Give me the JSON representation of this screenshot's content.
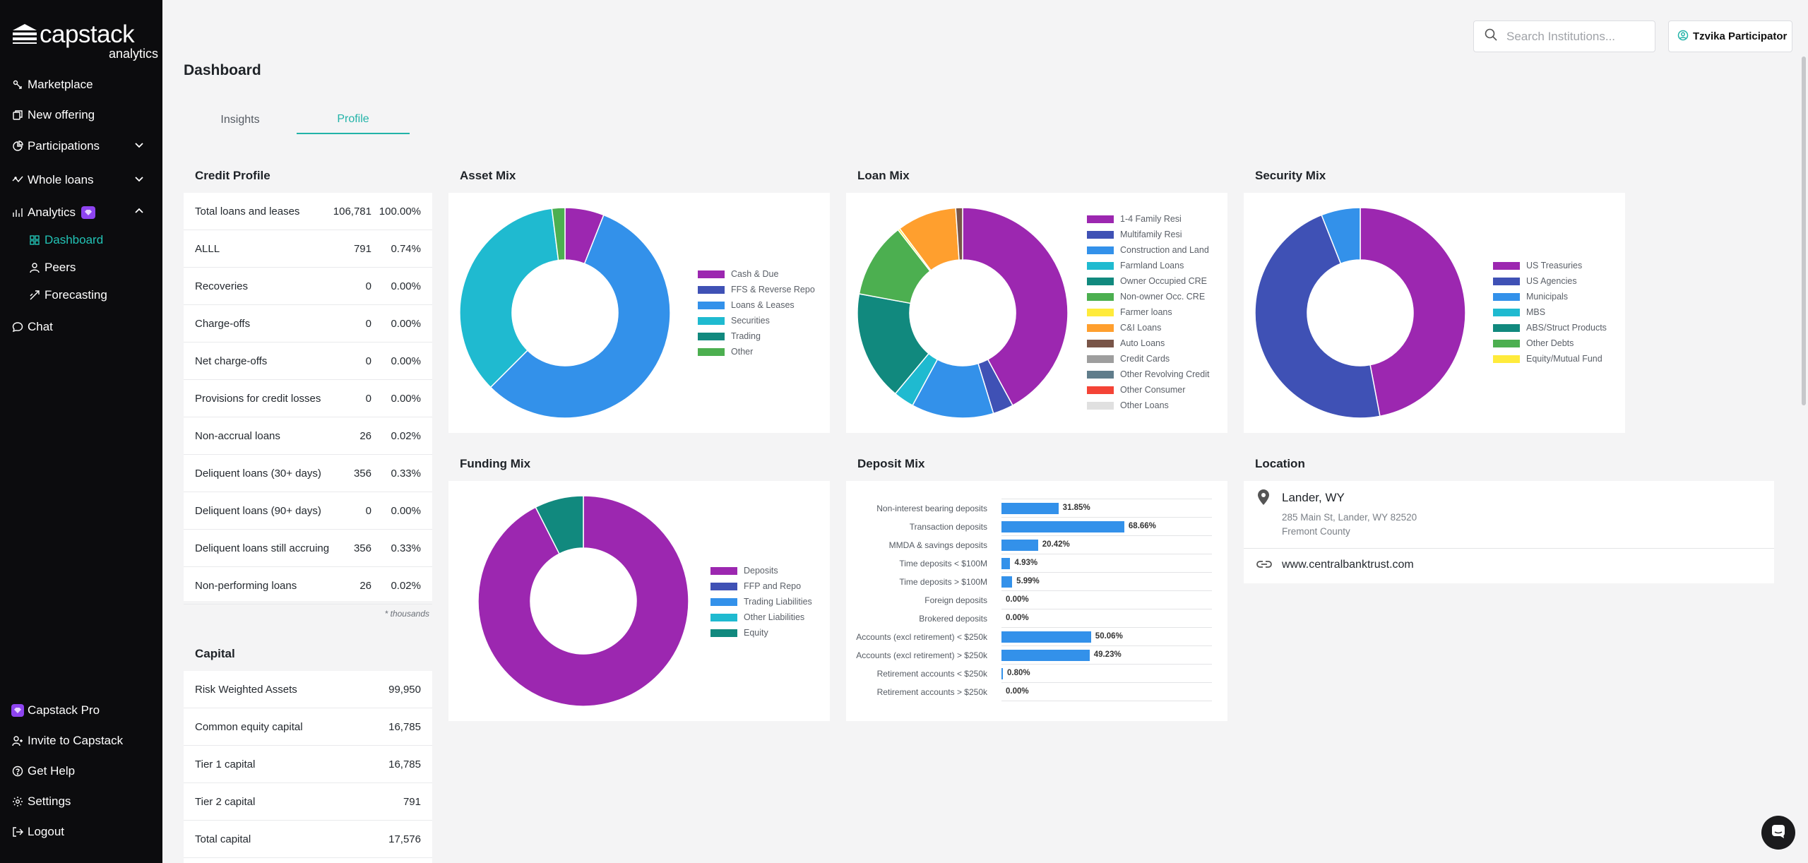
{
  "brand": {
    "name": "capstack",
    "sub": "analytics"
  },
  "sidebar": {
    "items": [
      {
        "label": "Marketplace",
        "icon": "marketplace-icon"
      },
      {
        "label": "New offering",
        "icon": "new-offering-icon"
      },
      {
        "label": "Participations",
        "icon": "participations-icon"
      },
      {
        "label": "Whole loans",
        "icon": "whole-loans-icon"
      },
      {
        "label": "Analytics",
        "icon": "analytics-icon"
      },
      {
        "label": "Dashboard",
        "icon": "dashboard-icon"
      },
      {
        "label": "Peers",
        "icon": "peers-icon"
      },
      {
        "label": "Forecasting",
        "icon": "forecasting-icon"
      },
      {
        "label": "Chat",
        "icon": "chat-icon"
      }
    ],
    "bottom": [
      {
        "label": "Capstack Pro",
        "icon": "pro-badge-icon"
      },
      {
        "label": "Invite to Capstack",
        "icon": "invite-icon"
      },
      {
        "label": "Get Help",
        "icon": "help-icon"
      },
      {
        "label": "Settings",
        "icon": "settings-icon"
      },
      {
        "label": "Logout",
        "icon": "logout-icon"
      }
    ]
  },
  "header": {
    "search_placeholder": "Search Institutions...",
    "user_name": "Tzvika Participator",
    "title": "Dashboard",
    "tabs": [
      "Insights",
      "Profile"
    ],
    "active_tab": "Profile"
  },
  "credit_profile": {
    "title": "Credit Profile",
    "rows": [
      {
        "label": "Total loans and leases",
        "value": "106,781",
        "pct": "100.00%"
      },
      {
        "label": "ALLL",
        "value": "791",
        "pct": "0.74%"
      },
      {
        "label": "Recoveries",
        "value": "0",
        "pct": "0.00%"
      },
      {
        "label": "Charge-offs",
        "value": "0",
        "pct": "0.00%"
      },
      {
        "label": "Net charge-offs",
        "value": "0",
        "pct": "0.00%"
      },
      {
        "label": "Provisions for credit losses",
        "value": "0",
        "pct": "0.00%"
      },
      {
        "label": "Non-accrual loans",
        "value": "26",
        "pct": "0.02%"
      },
      {
        "label": "Deliquent loans (30+ days)",
        "value": "356",
        "pct": "0.33%"
      },
      {
        "label": "Deliquent loans (90+ days)",
        "value": "0",
        "pct": "0.00%"
      },
      {
        "label": "Deliquent loans still accruing",
        "value": "356",
        "pct": "0.33%"
      },
      {
        "label": "Non-performing loans",
        "value": "26",
        "pct": "0.02%"
      }
    ],
    "footnote": "* thousands"
  },
  "capital": {
    "title": "Capital",
    "rows": [
      {
        "label": "Risk Weighted Assets",
        "value": "99,950"
      },
      {
        "label": "Common equity capital",
        "value": "16,785"
      },
      {
        "label": "Tier 1 capital",
        "value": "16,785"
      },
      {
        "label": "Tier 2 capital",
        "value": "791"
      },
      {
        "label": "Total capital",
        "value": "17,576"
      }
    ]
  },
  "asset_mix": {
    "title": "Asset Mix"
  },
  "loan_mix": {
    "title": "Loan Mix"
  },
  "security_mix": {
    "title": "Security Mix"
  },
  "funding_mix": {
    "title": "Funding Mix"
  },
  "deposit_mix": {
    "title": "Deposit Mix"
  },
  "location": {
    "title": "Location",
    "name": "Lander, WY",
    "address": "285 Main St, Lander, WY 82520",
    "county": "Fremont County",
    "website": "www.centralbanktrust.com"
  },
  "chart_data": [
    {
      "type": "pie",
      "chart": "asset_mix",
      "categories": [
        "Cash & Due",
        "FFS & Reverse Repo",
        "Loans & Leases",
        "Securities",
        "Trading",
        "Other"
      ],
      "values": [
        6.0,
        0.0,
        56.5,
        35.5,
        0.0,
        2.0
      ],
      "colors": [
        "#9c27b0",
        "#3f51b5",
        "#3391ea",
        "#1fbad0",
        "#11897e",
        "#4caf50"
      ]
    },
    {
      "type": "pie",
      "chart": "loan_mix",
      "categories": [
        "1-4 Family Resi",
        "Multifamily Resi",
        "Construction and Land",
        "Farmland Loans",
        "Owner Occupied CRE",
        "Non-owner Occ. CRE",
        "Farmer loans",
        "C&I Loans",
        "Auto Loans",
        "Credit Cards",
        "Other Revolving Credit",
        "Other Consumer",
        "Other Loans"
      ],
      "values": [
        40.0,
        3.0,
        12.0,
        3.0,
        16.0,
        11.0,
        0.3,
        8.7,
        1.0,
        0.0,
        0.0,
        0.0,
        0.0
      ],
      "colors": [
        "#9c27b0",
        "#3f51b5",
        "#3391ea",
        "#1fbad0",
        "#11897e",
        "#4caf50",
        "#ffeb3b",
        "#ff9f2e",
        "#795548",
        "#9e9e9e",
        "#607d8b",
        "#f44336",
        "#e0e0e0"
      ]
    },
    {
      "type": "pie",
      "chart": "security_mix",
      "categories": [
        "US Treasuries",
        "US Agencies",
        "Municipals",
        "MBS",
        "ABS/Struct Products",
        "Other Debts",
        "Equity/Mutual Fund"
      ],
      "values": [
        47.0,
        47.0,
        6.0,
        0.0,
        0.0,
        0.0,
        0.0
      ],
      "colors": [
        "#9c27b0",
        "#3f51b5",
        "#3391ea",
        "#1fbad0",
        "#11897e",
        "#4caf50",
        "#ffeb3b"
      ]
    },
    {
      "type": "pie",
      "chart": "funding_mix",
      "categories": [
        "Deposits",
        "FFP and Repo",
        "Trading Liabilities",
        "Other Liabilities",
        "Equity"
      ],
      "values": [
        92.5,
        0.0,
        0.0,
        0.0,
        7.5
      ],
      "colors": [
        "#9c27b0",
        "#3f51b5",
        "#3391ea",
        "#1fbad0",
        "#11897e"
      ]
    },
    {
      "type": "bar",
      "chart": "deposit_mix",
      "categories": [
        "Non-interest bearing deposits",
        "Transaction deposits",
        "MMDA & savings deposits",
        "Time deposits < $100M",
        "Time deposits > $100M",
        "Foreign deposits",
        "Brokered deposits",
        "Accounts (excl retirement) < $250k",
        "Accounts (excl retirement) > $250k",
        "Retirement accounts < $250k",
        "Retirement accounts > $250k"
      ],
      "values": [
        31.85,
        68.66,
        20.42,
        4.93,
        5.99,
        0.0,
        0.0,
        50.06,
        49.23,
        0.8,
        0.0
      ],
      "labels": [
        "31.85%",
        "68.66%",
        "20.42%",
        "4.93%",
        "5.99%",
        "0.00%",
        "0.00%",
        "50.06%",
        "49.23%",
        "0.80%",
        "0.00%"
      ],
      "color": "#3391ea"
    }
  ]
}
